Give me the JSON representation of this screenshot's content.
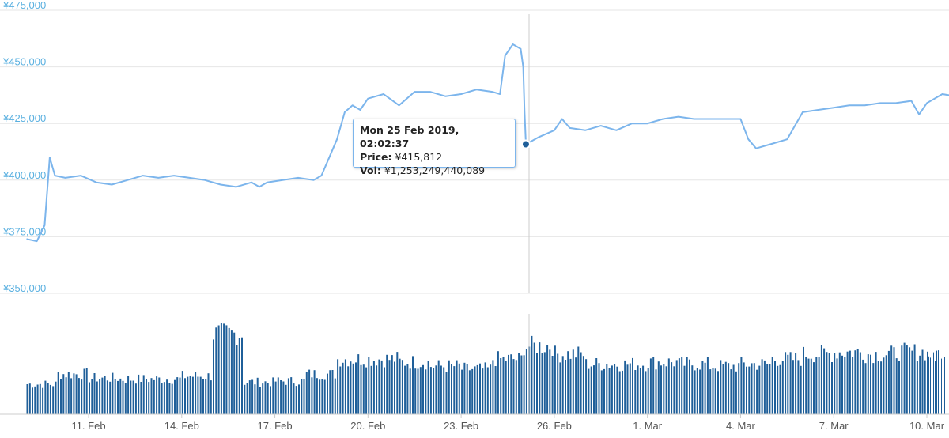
{
  "chart_data": {
    "type": "line",
    "title": "",
    "price_axis": {
      "ticks": [
        "¥475,000",
        "¥450,000",
        "¥425,000",
        "¥400,000",
        "¥375,000",
        "¥350,000"
      ],
      "tick_values": [
        475000,
        450000,
        425000,
        400000,
        375000,
        350000
      ],
      "range": [
        350000,
        475000
      ]
    },
    "x_axis": {
      "ticks": [
        "11. Feb",
        "14. Feb",
        "17. Feb",
        "20. Feb",
        "23. Feb",
        "26. Feb",
        "1. Mar",
        "4. Mar",
        "7. Mar",
        "10. Mar"
      ],
      "tick_dates": [
        "2019-02-11",
        "2019-02-14",
        "2019-02-17",
        "2019-02-20",
        "2019-02-23",
        "2019-02-26",
        "2019-03-01",
        "2019-03-04",
        "2019-03-07",
        "2019-03-10"
      ],
      "range": [
        "2019-02-09",
        "2019-03-10T22:00"
      ]
    },
    "series": [
      {
        "name": "Price",
        "color": "#7cb5ec",
        "points": [
          [
            "2019-02-09T00:00",
            374000
          ],
          [
            "2019-02-09T08:00",
            373000
          ],
          [
            "2019-02-09T14:00",
            380000
          ],
          [
            "2019-02-09T18:00",
            410000
          ],
          [
            "2019-02-09T22:00",
            402000
          ],
          [
            "2019-02-10T06:00",
            401000
          ],
          [
            "2019-02-10T18:00",
            402000
          ],
          [
            "2019-02-11T06:00",
            399000
          ],
          [
            "2019-02-11T18:00",
            398000
          ],
          [
            "2019-02-12T06:00",
            400000
          ],
          [
            "2019-02-12T18:00",
            402000
          ],
          [
            "2019-02-13T06:00",
            401000
          ],
          [
            "2019-02-13T18:00",
            402000
          ],
          [
            "2019-02-14T06:00",
            401000
          ],
          [
            "2019-02-14T18:00",
            400000
          ],
          [
            "2019-02-15T06:00",
            398000
          ],
          [
            "2019-02-15T18:00",
            397000
          ],
          [
            "2019-02-16T06:00",
            399000
          ],
          [
            "2019-02-16T12:00",
            397000
          ],
          [
            "2019-02-16T18:00",
            399000
          ],
          [
            "2019-02-17T06:00",
            400000
          ],
          [
            "2019-02-17T18:00",
            401000
          ],
          [
            "2019-02-18T06:00",
            400000
          ],
          [
            "2019-02-18T12:00",
            402000
          ],
          [
            "2019-02-18T18:00",
            410000
          ],
          [
            "2019-02-19T00:00",
            418000
          ],
          [
            "2019-02-19T06:00",
            430000
          ],
          [
            "2019-02-19T12:00",
            433000
          ],
          [
            "2019-02-19T18:00",
            431000
          ],
          [
            "2019-02-20T00:00",
            436000
          ],
          [
            "2019-02-20T12:00",
            438000
          ],
          [
            "2019-02-21T00:00",
            433000
          ],
          [
            "2019-02-21T12:00",
            439000
          ],
          [
            "2019-02-22T00:00",
            439000
          ],
          [
            "2019-02-22T12:00",
            437000
          ],
          [
            "2019-02-23T00:00",
            438000
          ],
          [
            "2019-02-23T12:00",
            440000
          ],
          [
            "2019-02-24T00:00",
            439000
          ],
          [
            "2019-02-24T06:00",
            438000
          ],
          [
            "2019-02-24T10:00",
            455000
          ],
          [
            "2019-02-24T16:00",
            460000
          ],
          [
            "2019-02-24T22:00",
            458000
          ],
          [
            "2019-02-25T00:00",
            450000
          ],
          [
            "2019-02-25T01:00",
            430000
          ],
          [
            "2019-02-25T02:02",
            415812
          ],
          [
            "2019-02-25T12:00",
            419000
          ],
          [
            "2019-02-26T00:00",
            422000
          ],
          [
            "2019-02-26T06:00",
            427000
          ],
          [
            "2019-02-26T12:00",
            423000
          ],
          [
            "2019-02-27T00:00",
            422000
          ],
          [
            "2019-02-27T12:00",
            424000
          ],
          [
            "2019-02-28T00:00",
            422000
          ],
          [
            "2019-02-28T12:00",
            425000
          ],
          [
            "2019-03-01T00:00",
            425000
          ],
          [
            "2019-03-01T12:00",
            427000
          ],
          [
            "2019-03-02T00:00",
            428000
          ],
          [
            "2019-03-02T12:00",
            427000
          ],
          [
            "2019-03-03T00:00",
            427000
          ],
          [
            "2019-03-03T12:00",
            427000
          ],
          [
            "2019-03-04T00:00",
            427000
          ],
          [
            "2019-03-04T06:00",
            418000
          ],
          [
            "2019-03-04T12:00",
            414000
          ],
          [
            "2019-03-05T00:00",
            416000
          ],
          [
            "2019-03-05T12:00",
            418000
          ],
          [
            "2019-03-05T18:00",
            424000
          ],
          [
            "2019-03-06T00:00",
            430000
          ],
          [
            "2019-03-06T12:00",
            431000
          ],
          [
            "2019-03-07T00:00",
            432000
          ],
          [
            "2019-03-07T12:00",
            433000
          ],
          [
            "2019-03-08T00:00",
            433000
          ],
          [
            "2019-03-08T12:00",
            434000
          ],
          [
            "2019-03-09T00:00",
            434000
          ],
          [
            "2019-03-09T12:00",
            435000
          ],
          [
            "2019-03-09T18:00",
            429000
          ],
          [
            "2019-03-10T00:00",
            434000
          ],
          [
            "2019-03-10T12:00",
            438000
          ],
          [
            "2019-03-10T22:00",
            437000
          ]
        ]
      },
      {
        "name": "Vol",
        "type": "bar",
        "color": "#1f5f99",
        "daily_levels": [
          [
            "2019-02-09",
            0.3
          ],
          [
            "2019-02-10",
            0.4
          ],
          [
            "2019-02-11",
            0.36
          ],
          [
            "2019-02-12",
            0.35
          ],
          [
            "2019-02-13",
            0.35
          ],
          [
            "2019-02-14",
            0.38
          ],
          [
            "2019-02-15",
            0.8
          ],
          [
            "2019-02-16",
            0.32
          ],
          [
            "2019-02-17",
            0.33
          ],
          [
            "2019-02-18",
            0.4
          ],
          [
            "2019-02-19",
            0.55
          ],
          [
            "2019-02-20",
            0.55
          ],
          [
            "2019-02-21",
            0.52
          ],
          [
            "2019-02-22",
            0.48
          ],
          [
            "2019-02-23",
            0.45
          ],
          [
            "2019-02-24",
            0.55
          ],
          [
            "2019-02-25",
            0.68
          ],
          [
            "2019-02-26",
            0.6
          ],
          [
            "2019-02-27",
            0.5
          ],
          [
            "2019-02-28",
            0.5
          ],
          [
            "2019-03-01",
            0.52
          ],
          [
            "2019-03-02",
            0.5
          ],
          [
            "2019-03-03",
            0.48
          ],
          [
            "2019-03-04",
            0.5
          ],
          [
            "2019-03-05",
            0.55
          ],
          [
            "2019-03-06",
            0.6
          ],
          [
            "2019-03-07",
            0.62
          ],
          [
            "2019-03-08",
            0.6
          ],
          [
            "2019-03-09",
            0.62
          ],
          [
            "2019-03-10",
            0.6
          ]
        ]
      }
    ],
    "legend": "none",
    "grid": true,
    "tooltip": {
      "title": "Mon 25 Feb 2019, 02:02:37",
      "price_label": "Price:",
      "price_value": "¥415,812",
      "vol_label": "Vol:",
      "vol_value": "¥1,253,249,440,089"
    }
  },
  "colors": {
    "price_line": "#7cb5ec",
    "volume_bars": "#1f5f99",
    "axis_labels": "#5ab0e0",
    "crosshair": "#cccccc",
    "marker": "#1f5f99"
  }
}
